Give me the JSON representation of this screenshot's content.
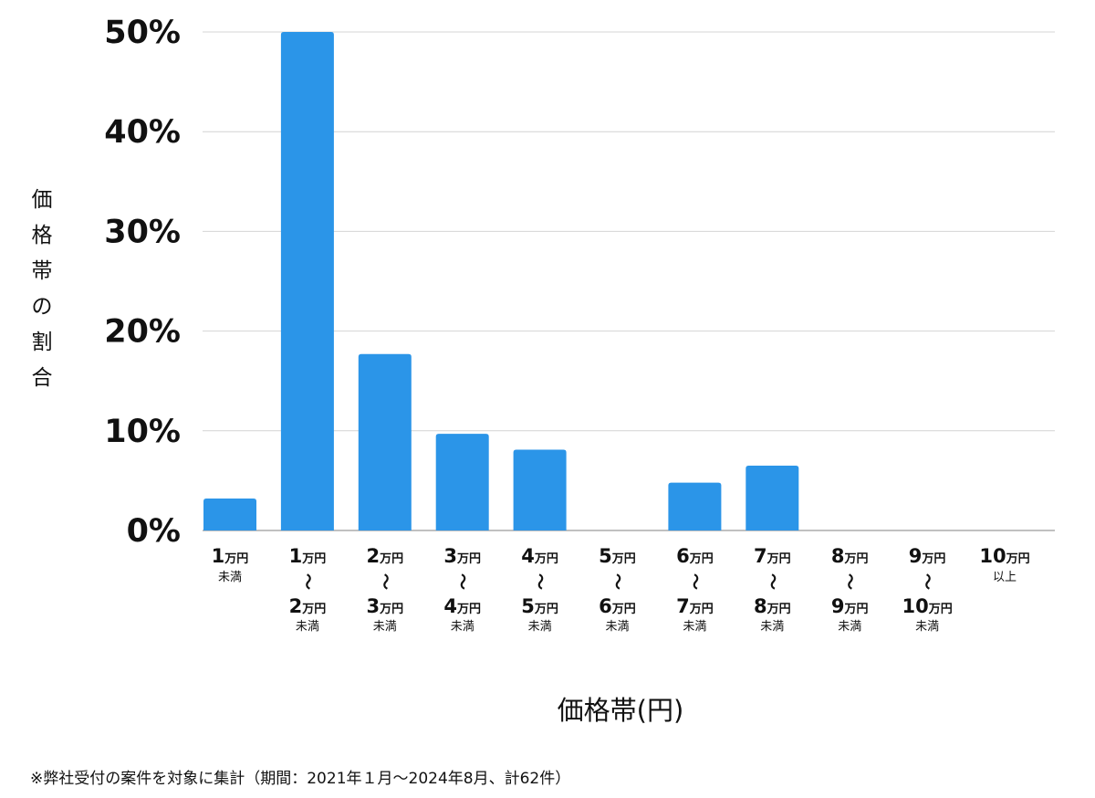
{
  "chart_data": {
    "type": "bar",
    "xlabel": "価格帯(円)",
    "ylabel": "価格帯の割合",
    "ylim": [
      0,
      50
    ],
    "yticks": [
      "0%",
      "10%",
      "20%",
      "30%",
      "40%",
      "50%"
    ],
    "grid": true,
    "bar_color": "#2b95e8",
    "categories": [
      {
        "from_num": "1",
        "from_unit": "万円",
        "suffix": "未満"
      },
      {
        "from_num": "1",
        "from_unit": "万円",
        "sep": "〜",
        "to_num": "2",
        "to_unit": "万円",
        "suffix": "未満"
      },
      {
        "from_num": "2",
        "from_unit": "万円",
        "sep": "〜",
        "to_num": "3",
        "to_unit": "万円",
        "suffix": "未満"
      },
      {
        "from_num": "3",
        "from_unit": "万円",
        "sep": "〜",
        "to_num": "4",
        "to_unit": "万円",
        "suffix": "未満"
      },
      {
        "from_num": "4",
        "from_unit": "万円",
        "sep": "〜",
        "to_num": "5",
        "to_unit": "万円",
        "suffix": "未満"
      },
      {
        "from_num": "5",
        "from_unit": "万円",
        "sep": "〜",
        "to_num": "6",
        "to_unit": "万円",
        "suffix": "未満"
      },
      {
        "from_num": "6",
        "from_unit": "万円",
        "sep": "〜",
        "to_num": "7",
        "to_unit": "万円",
        "suffix": "未満"
      },
      {
        "from_num": "7",
        "from_unit": "万円",
        "sep": "〜",
        "to_num": "8",
        "to_unit": "万円",
        "suffix": "未満"
      },
      {
        "from_num": "8",
        "from_unit": "万円",
        "sep": "〜",
        "to_num": "9",
        "to_unit": "万円",
        "suffix": "未満"
      },
      {
        "from_num": "9",
        "from_unit": "万円",
        "sep": "〜",
        "to_num": "10",
        "to_unit": "万円",
        "suffix": "未満"
      },
      {
        "from_num": "10",
        "from_unit": "万円",
        "suffix": "以上"
      }
    ],
    "values": [
      3.2,
      50.0,
      17.7,
      9.7,
      8.1,
      0,
      4.8,
      6.5,
      0,
      0,
      0
    ]
  },
  "footnote": "※弊社受付の案件を対象に集計（期間：2021年１月〜2024年8月、計62件）"
}
